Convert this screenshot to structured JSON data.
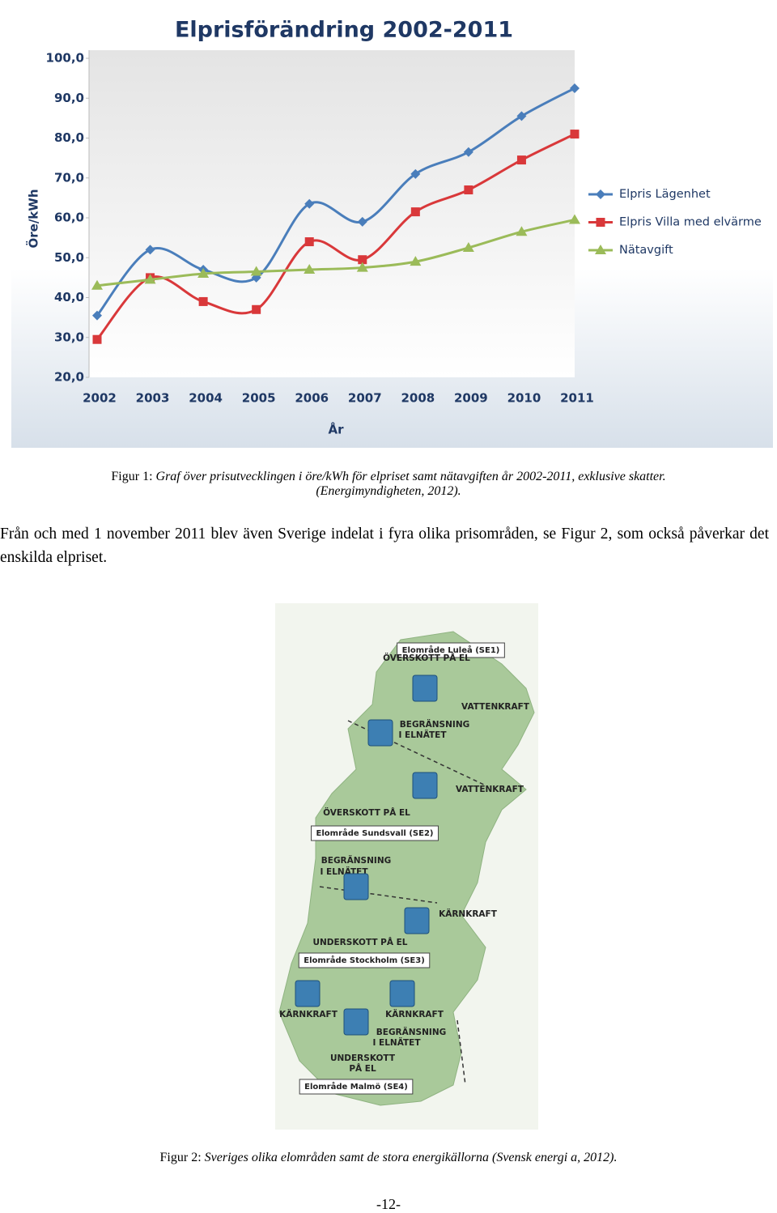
{
  "chart_data": {
    "type": "line",
    "title": "Elprisförändring 2002-2011",
    "y_label": "Öre/kWh",
    "x_label": "År",
    "categories": [
      "2002",
      "2003",
      "2004",
      "2005",
      "2006",
      "2007",
      "2008",
      "2009",
      "2010",
      "2011"
    ],
    "series": [
      {
        "name": "Elpris Lägenhet",
        "color": "#4a7ebb",
        "marker": "diamond",
        "values": [
          35.5,
          52,
          47,
          45,
          63.5,
          59,
          71,
          76.5,
          85.5,
          92.5
        ]
      },
      {
        "name": "Elpris Villa med elvärme",
        "color": "#d9383a",
        "marker": "square",
        "values": [
          29.5,
          45,
          39,
          37,
          54,
          49.5,
          61.5,
          67,
          74.5,
          81
        ]
      },
      {
        "name": "Nätavgift",
        "color": "#9bbb59",
        "marker": "triangle",
        "values": [
          43,
          44.5,
          46,
          46.5,
          47,
          47.5,
          49,
          52.5,
          56.5,
          59.5
        ]
      }
    ],
    "ylim": [
      20,
      100
    ],
    "yticks": [
      {
        "value": 20,
        "label": "20,0"
      },
      {
        "value": 30,
        "label": "30,0"
      },
      {
        "value": 40,
        "label": "40,0"
      },
      {
        "value": 50,
        "label": "50,0"
      },
      {
        "value": 60,
        "label": "60,0"
      },
      {
        "value": 70,
        "label": "70,0"
      },
      {
        "value": 80,
        "label": "80,0"
      },
      {
        "value": 90,
        "label": "90,0"
      },
      {
        "value": 100,
        "label": "100,0"
      }
    ],
    "grid": false,
    "legend": "right"
  },
  "figure1": {
    "label": "Figur 1:",
    "text": "Graf över prisutvecklingen i öre/kWh för elpriset samt nätavgiften år 2002-2011, exklusive skatter.",
    "citation": "(Energimyndigheten, 2012)."
  },
  "paragraph": "Från och med 1 november 2011 blev även Sverige indelat i fyra olika prisområden, se Figur 2, som också påverkar det enskilda elpriset.",
  "map": {
    "labels": [
      "Elområde Luleå (SE1)",
      "ÖVERSKOTT PÅ EL",
      "VATTENKRAFT",
      "BEGRÄNSNING",
      "I ELNÄTET",
      "VATTENKRAFT",
      "ÖVERSKOTT PÅ EL",
      "Elområde Sundsvall (SE2)",
      "BEGRÄNSNING",
      "I ELNÄTET",
      "KÄRNKRAFT",
      "UNDERSKOTT PÅ EL",
      "Elområde Stockholm (SE3)",
      "KÄRNKRAFT",
      "KÄRNKRAFT",
      "BEGRÄNSNING",
      "I ELNÄTET",
      "UNDERSKOTT",
      "PÅ EL",
      "Elområde Malmö (SE4)"
    ]
  },
  "figure2": {
    "label": "Figur 2:",
    "text": "Sveriges olika elområden samt de stora energikällorna (Svensk energi a, 2012)."
  },
  "page_number": "-12-"
}
